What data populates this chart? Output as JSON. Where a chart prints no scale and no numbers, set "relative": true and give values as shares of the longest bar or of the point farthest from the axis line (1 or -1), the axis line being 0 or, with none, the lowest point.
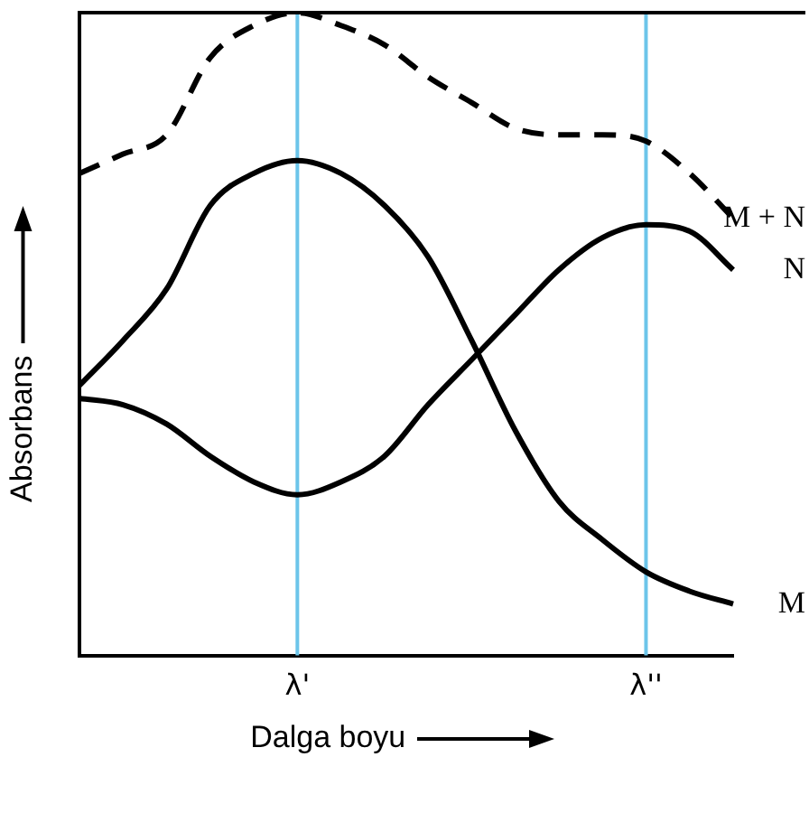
{
  "chart_data": {
    "type": "line",
    "relative": true,
    "xlabel": "Dalga boyu",
    "ylabel": "Absorbans",
    "categories": [
      null,
      null,
      null,
      null,
      null,
      "λ'",
      null,
      null,
      null,
      null,
      null,
      null,
      null,
      "λ''",
      null,
      null
    ],
    "series": [
      {
        "name": "M + N",
        "color": "#000000",
        "line_style": "dashed",
        "values": [
          0.75,
          0.78,
          0.81,
          0.93,
          0.98,
          1,
          0.98,
          0.95,
          0.9,
          0.86,
          0.82,
          0.81,
          0.81,
          0.8,
          0.75,
          0.68
        ]
      },
      {
        "name": "M",
        "color": "#000000",
        "values": [
          0.42,
          0.49,
          0.57,
          0.7,
          0.75,
          0.77,
          0.75,
          0.7,
          0.62,
          0.49,
          0.35,
          0.24,
          0.18,
          0.13,
          0.1,
          0.08
        ]
      },
      {
        "name": "N",
        "color": "#000000",
        "values": [
          0.4,
          0.39,
          0.36,
          0.31,
          0.27,
          0.25,
          0.27,
          0.31,
          0.39,
          0.46,
          0.53,
          0.6,
          0.65,
          0.67,
          0.66,
          0.6
        ]
      }
    ],
    "ref_lines": [
      {
        "axis": "x",
        "value": "λ'",
        "color": "#6cc5ea"
      },
      {
        "axis": "x",
        "value": "λ''",
        "color": "#6cc5ea"
      }
    ],
    "grid": false,
    "legend": false,
    "marker": "none"
  }
}
